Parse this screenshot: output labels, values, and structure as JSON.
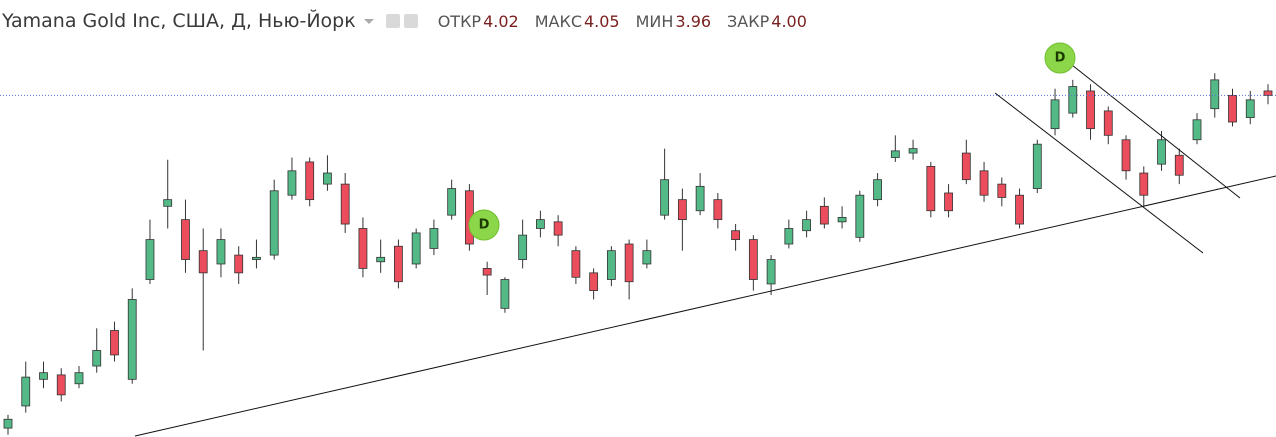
{
  "header": {
    "title": "Yamana Gold Inc, США, Д, Нью-Йорк",
    "ohlc": [
      {
        "label": "ОТКР",
        "value": "4.02"
      },
      {
        "label": "МАКС",
        "value": "4.05"
      },
      {
        "label": "МИН",
        "value": "3.96"
      },
      {
        "label": "ЗАКР",
        "value": "4.00"
      }
    ]
  },
  "markers": [
    {
      "label": "D"
    },
    {
      "label": "D"
    }
  ],
  "chart_data": {
    "type": "candlestick",
    "ylim": [
      2.46,
      4.43
    ],
    "up_color": "#53b987",
    "down_color": "#eb4d5c",
    "open": [
      2.5,
      2.6,
      2.72,
      2.74,
      2.7,
      2.78,
      2.94,
      2.72,
      3.17,
      3.5,
      3.44,
      3.3,
      3.24,
      3.28,
      3.26,
      3.28,
      3.55,
      3.7,
      3.6,
      3.6,
      3.4,
      3.25,
      3.32,
      3.24,
      3.31,
      3.46,
      3.57,
      3.22,
      3.04,
      3.26,
      3.4,
      3.43,
      3.3,
      3.2,
      3.17,
      3.33,
      3.24,
      3.46,
      3.53,
      3.48,
      3.53,
      3.39,
      3.35,
      3.15,
      3.33,
      3.39,
      3.5,
      3.43,
      3.36,
      3.53,
      3.72,
      3.74,
      3.68,
      3.56,
      3.74,
      3.66,
      3.6,
      3.55,
      3.58,
      3.85,
      3.92,
      4.02,
      3.93,
      3.8,
      3.65,
      3.69,
      3.73,
      3.8,
      3.94,
      4.0,
      3.9,
      4.02
    ],
    "high": [
      2.56,
      2.8,
      2.8,
      2.77,
      2.78,
      2.95,
      2.98,
      3.13,
      3.44,
      3.71,
      3.53,
      3.4,
      3.4,
      3.32,
      3.35,
      3.62,
      3.72,
      3.72,
      3.73,
      3.65,
      3.45,
      3.35,
      3.35,
      3.4,
      3.44,
      3.62,
      3.6,
      3.25,
      3.18,
      3.44,
      3.48,
      3.46,
      3.32,
      3.22,
      3.32,
      3.35,
      3.35,
      3.76,
      3.58,
      3.65,
      3.56,
      3.42,
      3.37,
      3.28,
      3.44,
      3.48,
      3.54,
      3.5,
      3.57,
      3.65,
      3.82,
      3.8,
      3.7,
      3.6,
      3.8,
      3.7,
      3.63,
      3.58,
      3.8,
      4.03,
      4.07,
      4.05,
      3.95,
      3.82,
      3.68,
      3.84,
      3.76,
      3.92,
      4.1,
      4.03,
      4.02,
      4.05
    ],
    "low": [
      2.47,
      2.57,
      2.68,
      2.62,
      2.68,
      2.75,
      2.8,
      2.7,
      3.15,
      3.4,
      3.2,
      2.85,
      3.18,
      3.15,
      3.22,
      3.26,
      3.53,
      3.5,
      3.57,
      3.38,
      3.18,
      3.2,
      3.13,
      3.22,
      3.28,
      3.44,
      3.3,
      3.1,
      3.02,
      3.22,
      3.36,
      3.32,
      3.15,
      3.08,
      3.14,
      3.08,
      3.22,
      3.44,
      3.3,
      3.46,
      3.4,
      3.3,
      3.12,
      3.1,
      3.31,
      3.36,
      3.4,
      3.4,
      3.34,
      3.5,
      3.7,
      3.71,
      3.45,
      3.45,
      3.6,
      3.52,
      3.5,
      3.4,
      3.56,
      3.82,
      3.9,
      3.8,
      3.78,
      3.62,
      3.5,
      3.66,
      3.6,
      3.78,
      3.9,
      3.86,
      3.87,
      3.96
    ],
    "close": [
      2.54,
      2.73,
      2.75,
      2.65,
      2.75,
      2.85,
      2.83,
      3.08,
      3.35,
      3.53,
      3.26,
      3.2,
      3.35,
      3.2,
      3.27,
      3.57,
      3.66,
      3.53,
      3.65,
      3.42,
      3.22,
      3.27,
      3.16,
      3.38,
      3.4,
      3.58,
      3.33,
      3.19,
      3.17,
      3.37,
      3.44,
      3.37,
      3.18,
      3.12,
      3.3,
      3.16,
      3.3,
      3.62,
      3.44,
      3.59,
      3.44,
      3.35,
      3.17,
      3.26,
      3.4,
      3.44,
      3.42,
      3.45,
      3.55,
      3.62,
      3.75,
      3.76,
      3.48,
      3.48,
      3.62,
      3.55,
      3.54,
      3.42,
      3.78,
      3.98,
      4.04,
      3.85,
      3.82,
      3.66,
      3.55,
      3.8,
      3.64,
      3.89,
      4.07,
      3.88,
      3.98,
      4.0
    ]
  }
}
